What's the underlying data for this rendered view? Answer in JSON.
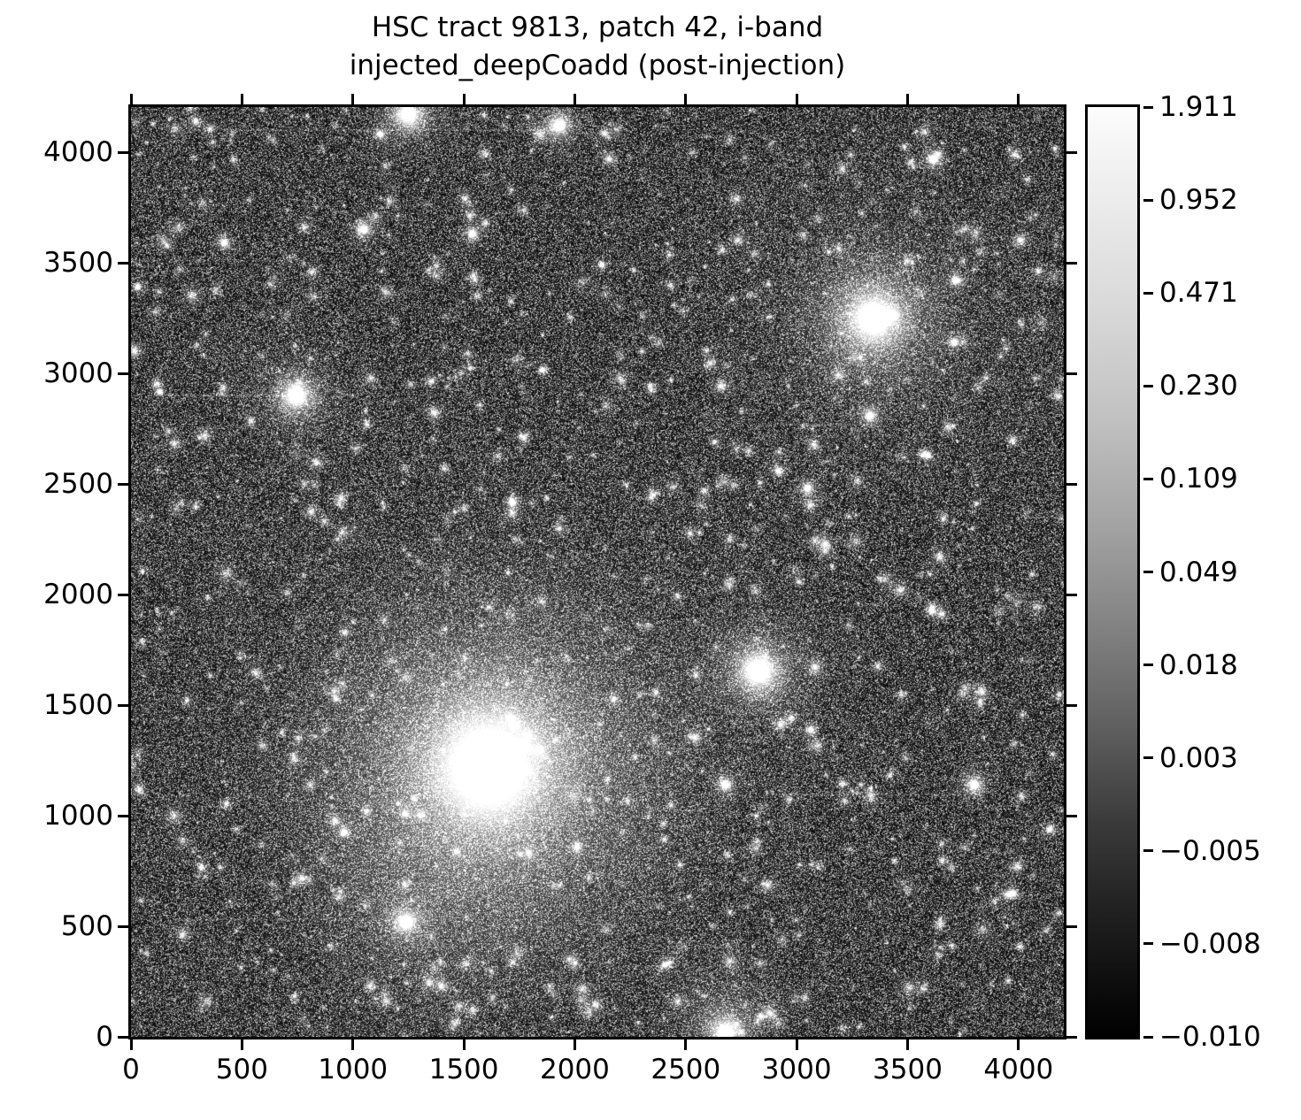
{
  "title": {
    "line1": "HSC tract 9813, patch 42, i-band",
    "line2": "injected_deepCoadd (post-injection)"
  },
  "axes": {
    "x_tick_labels": [
      "0",
      "500",
      "1000",
      "1500",
      "2000",
      "2500",
      "3000",
      "3500",
      "4000"
    ],
    "y_tick_labels": [
      "0",
      "500",
      "1000",
      "1500",
      "2000",
      "2500",
      "3000",
      "3500",
      "4000"
    ],
    "x_tick_values": [
      0,
      500,
      1000,
      1500,
      2000,
      2500,
      3000,
      3500,
      4000
    ],
    "y_tick_values": [
      0,
      500,
      1000,
      1500,
      2000,
      2500,
      3000,
      3500,
      4000
    ]
  },
  "colorbar": {
    "tick_labels": [
      "1.911",
      "0.952",
      "0.471",
      "0.230",
      "0.109",
      "0.049",
      "0.018",
      "0.003",
      "−0.005",
      "−0.008",
      "−0.010"
    ],
    "top_color": "#ffffff",
    "bottom_color": "#000000"
  },
  "chart_data": {
    "type": "heatmap",
    "title": "HSC tract 9813, patch 42, i-band\ninjected_deepCoadd (post-injection)",
    "xlabel": "",
    "ylabel": "",
    "xlim": [
      0,
      4204
    ],
    "ylim": [
      0,
      4204
    ],
    "x_ticks": [
      0,
      500,
      1000,
      1500,
      2000,
      2500,
      3000,
      3500,
      4000
    ],
    "y_ticks": [
      0,
      500,
      1000,
      1500,
      2000,
      2500,
      3000,
      3500,
      4000
    ],
    "grid": false,
    "legend": "none",
    "colorbar": {
      "position": "right",
      "cmap": "grayscale (black to white)",
      "stretch": "asinh/log (non-linear, evenly spaced ticks)",
      "tick_values": [
        1.911,
        0.952,
        0.471,
        0.23,
        0.109,
        0.049,
        0.018,
        0.003,
        -0.005,
        -0.008,
        -0.01
      ],
      "vmin": -0.01,
      "vmax": 1.911
    },
    "image_content": "dense grayscale deep-sky coadd: thousands of faint stars/galaxies over noisy dark background, galaxy-cluster diffuse light near (1600,1200)",
    "background_noise": {
      "mean_level": 0.01,
      "appearance": "salt-and-pepper speckle, dark gray"
    },
    "diffuse_light": [
      {
        "x": 1615,
        "y": 1150,
        "r": 1150,
        "alpha": 0.2
      },
      {
        "x": 1300,
        "y": 600,
        "r": 650,
        "alpha": 0.1
      },
      {
        "x": 2680,
        "y": 120,
        "r": 380,
        "alpha": 0.14
      }
    ],
    "bright_sources": [
      {
        "x": 1615,
        "y": 1225,
        "core": 55,
        "halo": 950,
        "outer_glow_r": 1900,
        "type": "cD galaxy, brightest extended source"
      },
      {
        "x": 2828,
        "y": 1655,
        "core": 85,
        "halo": 300,
        "outer_glow_r": 520,
        "type": "saturated bright star"
      },
      {
        "x": 3347,
        "y": 3248,
        "core": 50,
        "halo": 430,
        "outer_glow_r": 1000,
        "type": "bright star, large halo"
      },
      {
        "x": 745,
        "y": 2900,
        "core": 40,
        "halo": 210,
        "outer_glow_r": 420,
        "type": "bright star"
      },
      {
        "x": 1930,
        "y": 4120,
        "core": 38,
        "halo": 180,
        "type": "bright star near top edge"
      },
      {
        "x": 1250,
        "y": 4170,
        "core": 42,
        "halo": 260,
        "type": "bright star cut by top edge"
      },
      {
        "x": 2680,
        "y": 20,
        "core": 45,
        "halo": 250,
        "type": "bright source at bottom edge"
      },
      {
        "x": 1240,
        "y": 520,
        "core": 32,
        "halo": 180,
        "type": "bright star"
      },
      {
        "x": 3800,
        "y": 1140,
        "core": 30,
        "halo": 130,
        "type": "star"
      },
      {
        "x": 2680,
        "y": 1140,
        "core": 26,
        "halo": 110,
        "type": "star"
      },
      {
        "x": 1050,
        "y": 3650,
        "core": 26,
        "halo": 115,
        "type": "star"
      },
      {
        "x": 1540,
        "y": 3630,
        "core": 22,
        "halo": 95,
        "type": "star"
      },
      {
        "x": 420,
        "y": 3590,
        "core": 20,
        "halo": 85,
        "type": "star"
      },
      {
        "x": 3050,
        "y": 2480,
        "core": 22,
        "halo": 95,
        "type": "star"
      },
      {
        "x": 3330,
        "y": 2808,
        "core": 24,
        "halo": 105,
        "type": "star"
      },
      {
        "x": 3718,
        "y": 3420,
        "core": 20,
        "halo": 85,
        "type": "star"
      },
      {
        "x": 3710,
        "y": 3140,
        "core": 18,
        "halo": 75,
        "type": "star"
      },
      {
        "x": 3617,
        "y": 3968,
        "core": 18,
        "halo": 75,
        "type": "star"
      },
      {
        "x": 1125,
        "y": 4080,
        "core": 16,
        "halo": 65,
        "type": "star"
      },
      {
        "x": 30,
        "y": 3390,
        "core": 14,
        "halo": 60,
        "type": "star at left edge"
      },
      {
        "x": 130,
        "y": 2915,
        "core": 14,
        "halo": 55,
        "type": "star"
      },
      {
        "x": 3977,
        "y": 648,
        "core": 16,
        "halo": 65,
        "type": "star"
      },
      {
        "x": 1855,
        "y": 3015,
        "core": 16,
        "halo": 62,
        "type": "star"
      },
      {
        "x": 2122,
        "y": 3490,
        "core": 15,
        "halo": 60,
        "type": "star"
      },
      {
        "x": 3590,
        "y": 2630,
        "core": 16,
        "halo": 62,
        "type": "star"
      },
      {
        "x": 2413,
        "y": 328,
        "core": 30,
        "halo": 115,
        "ellip": 0.55,
        "angle": -0.5,
        "type": "elongated galaxy"
      },
      {
        "x": 195,
        "y": 1000,
        "core": 10,
        "halo": 100,
        "faint": true,
        "type": "diffuse galaxy"
      },
      {
        "x": 960,
        "y": 925,
        "core": 14,
        "halo": 70,
        "type": "star"
      }
    ],
    "artifacts": [
      {
        "y": 1130,
        "x1": 1130,
        "x2": 2410,
        "alpha": 0.1,
        "type": "horizontal streak"
      },
      {
        "y": 1095,
        "x1": 2890,
        "x2": 3740,
        "alpha": 0.1,
        "type": "horizontal streak"
      },
      {
        "y": 2768,
        "x1": 2920,
        "x2": 3360,
        "alpha": 0.1,
        "type": "horizontal streak"
      },
      {
        "y": 4100,
        "x1": 400,
        "x2": 1930,
        "alpha": 0.12,
        "type": "horizontal streak into star"
      },
      {
        "y": 2900,
        "x1": 170,
        "x2": 700,
        "alpha": 0.12,
        "type": "horizontal streak into star"
      },
      {
        "y": 530,
        "x1": 200,
        "x2": 1150,
        "alpha": 0.09,
        "type": "horizontal streak"
      },
      {
        "y": 2250,
        "x1": 350,
        "x2": 1100,
        "alpha": 0.07,
        "type": "horizontal streak"
      },
      {
        "y": 3510,
        "x1": 20,
        "x2": 680,
        "alpha": 0.07,
        "type": "horizontal streak"
      }
    ]
  }
}
